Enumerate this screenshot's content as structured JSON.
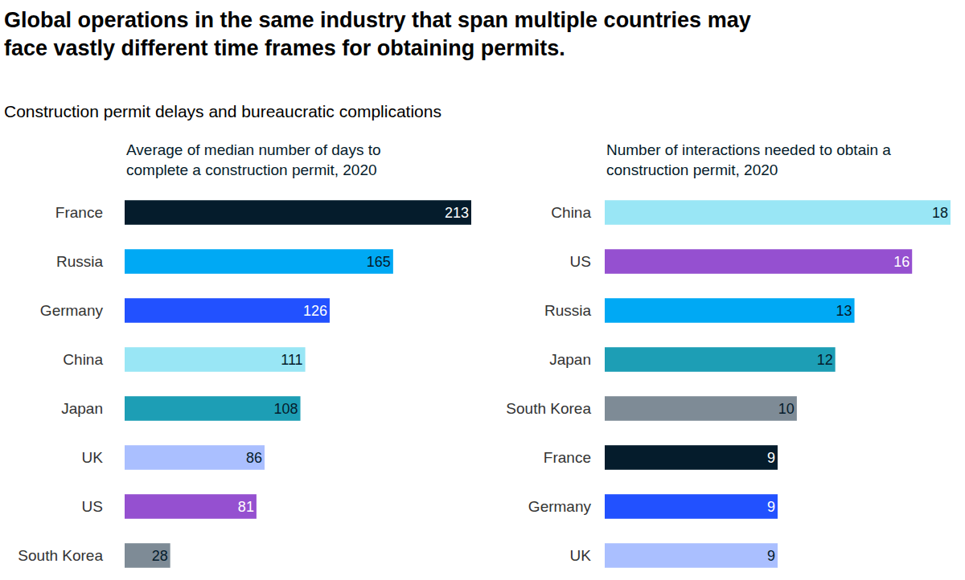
{
  "title": "Global operations in the same industry that span multiple countries may face vastly different time frames for obtaining permits.",
  "subtitle": "Construction permit delays and bureaucratic complications",
  "chart_data": [
    {
      "type": "bar",
      "orientation": "horizontal",
      "title": "Average of median number of days to complete a construction permit, 2020",
      "categories": [
        "France",
        "Russia",
        "Germany",
        "China",
        "Japan",
        "UK",
        "US",
        "South Korea"
      ],
      "values": [
        213,
        165,
        126,
        111,
        108,
        86,
        81,
        28
      ],
      "colors": [
        "#051c2c",
        "#00a9f4",
        "#2251ff",
        "#99e6f5",
        "#1d9eb5",
        "#aabfff",
        "#9550d0",
        "#7e8b96"
      ],
      "xlim": [
        0,
        213
      ],
      "data_labels": true,
      "tick_labels": "y",
      "grid": false
    },
    {
      "type": "bar",
      "orientation": "horizontal",
      "title": "Number of interactions needed to obtain a construction permit, 2020",
      "categories": [
        "China",
        "US",
        "Russia",
        "Japan",
        "South Korea",
        "France",
        "Germany",
        "UK"
      ],
      "values": [
        18,
        16,
        13,
        12,
        10,
        9,
        9,
        9
      ],
      "colors": [
        "#99e6f5",
        "#9550d0",
        "#00a9f4",
        "#1d9eb5",
        "#7e8b96",
        "#051c2c",
        "#2251ff",
        "#aabfff"
      ],
      "xlim": [
        0,
        18
      ],
      "data_labels": true,
      "tick_labels": "y",
      "grid": false
    }
  ]
}
